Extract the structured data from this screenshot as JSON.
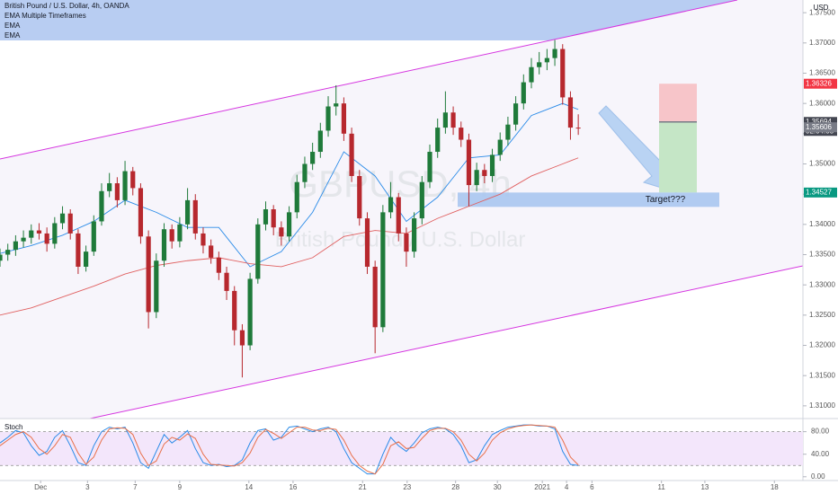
{
  "chart_data": {
    "type": "candlestick",
    "title": "British Pound / U.S. Dollar, 4h, OANDA",
    "indicators": [
      "EMA Multiple Timeframes"
    ],
    "watermark": [
      "GBPUSD, 4h",
      "British Pound / U.S. Dollar"
    ],
    "currency": "USD",
    "up_color": "#1f7a3a",
    "down_color": "#b7282e",
    "grid": false,
    "x": [
      0,
      2,
      4,
      6,
      8,
      10,
      12,
      14,
      16,
      18,
      20,
      22,
      24,
      26,
      28,
      30,
      32,
      34,
      36,
      38,
      40,
      42,
      44,
      46,
      48,
      50,
      52,
      54,
      56,
      58,
      60,
      62,
      64,
      66,
      68,
      70,
      72,
      74,
      76,
      78,
      80,
      82,
      84,
      86,
      88,
      90,
      92,
      94,
      96,
      98,
      100,
      102,
      104,
      106,
      108,
      110,
      112,
      114,
      116,
      118,
      120,
      122,
      124,
      126,
      128,
      130,
      132,
      134,
      136,
      138,
      140,
      142,
      144,
      146,
      148
    ],
    "open": [
      1.334,
      1.335,
      1.3358,
      1.3372,
      1.3378,
      1.339,
      1.3385,
      1.3368,
      1.3402,
      1.3418,
      1.3385,
      1.333,
      1.3355,
      1.3405,
      1.3455,
      1.3468,
      1.344,
      1.3488,
      1.346,
      1.338,
      1.3255,
      1.334,
      1.3392,
      1.3372,
      1.34,
      1.344,
      1.3385,
      1.3365,
      1.3345,
      1.332,
      1.329,
      1.3225,
      1.32,
      1.331,
      1.34,
      1.3425,
      1.3395,
      1.338,
      1.342,
      1.347,
      1.35,
      1.352,
      1.3555,
      1.3595,
      1.36,
      1.355,
      1.348,
      1.341,
      1.333,
      1.323,
      1.342,
      1.3445,
      1.3385,
      1.3355,
      1.341,
      1.347,
      1.352,
      1.356,
      1.3585,
      1.356,
      1.354,
      1.3465,
      1.349,
      1.348,
      1.3515,
      1.354,
      1.3565,
      1.36,
      1.3635,
      1.366,
      1.3668,
      1.3675,
      1.369,
      1.361,
      1.356
    ],
    "high": [
      1.336,
      1.3368,
      1.3382,
      1.339,
      1.34,
      1.3402,
      1.3395,
      1.3412,
      1.343,
      1.3425,
      1.3392,
      1.3365,
      1.3415,
      1.3468,
      1.3485,
      1.3478,
      1.3505,
      1.3495,
      1.3468,
      1.339,
      1.3352,
      1.3402,
      1.34,
      1.3412,
      1.346,
      1.345,
      1.3395,
      1.3375,
      1.3355,
      1.333,
      1.3298,
      1.3235,
      1.332,
      1.341,
      1.3438,
      1.3432,
      1.3405,
      1.343,
      1.3482,
      1.3512,
      1.3535,
      1.3568,
      1.3612,
      1.363,
      1.361,
      1.356,
      1.349,
      1.342,
      1.334,
      1.3432,
      1.347,
      1.3452,
      1.3395,
      1.342,
      1.348,
      1.3532,
      1.3575,
      1.362,
      1.3595,
      1.357,
      1.355,
      1.3502,
      1.35,
      1.3525,
      1.3552,
      1.3578,
      1.3612,
      1.3648,
      1.3675,
      1.3685,
      1.369,
      1.3705,
      1.3698,
      1.362,
      1.3582
    ],
    "low": [
      1.333,
      1.334,
      1.3348,
      1.3362,
      1.3368,
      1.3375,
      1.3355,
      1.336,
      1.3392,
      1.3375,
      1.3318,
      1.3322,
      1.3348,
      1.3398,
      1.3445,
      1.3428,
      1.3432,
      1.3448,
      1.3368,
      1.3228,
      1.3245,
      1.333,
      1.336,
      1.3362,
      1.3392,
      1.3375,
      1.3352,
      1.3335,
      1.3308,
      1.3275,
      1.32,
      1.3147,
      1.3192,
      1.3302,
      1.339,
      1.3382,
      1.3365,
      1.3372,
      1.341,
      1.346,
      1.349,
      1.351,
      1.3545,
      1.358,
      1.3538,
      1.347,
      1.3398,
      1.3318,
      1.3187,
      1.3222,
      1.341,
      1.3372,
      1.333,
      1.3345,
      1.34,
      1.346,
      1.351,
      1.355,
      1.3548,
      1.3528,
      1.343,
      1.3455,
      1.3468,
      1.347,
      1.3505,
      1.353,
      1.3555,
      1.359,
      1.3625,
      1.3648,
      1.3655,
      1.3662,
      1.3598,
      1.354,
      1.3548
    ],
    "close": [
      1.335,
      1.3358,
      1.3372,
      1.3378,
      1.339,
      1.3385,
      1.3368,
      1.3402,
      1.3418,
      1.3385,
      1.333,
      1.3355,
      1.3405,
      1.3455,
      1.3468,
      1.344,
      1.3488,
      1.346,
      1.338,
      1.3255,
      1.334,
      1.3392,
      1.3372,
      1.34,
      1.344,
      1.3385,
      1.3365,
      1.3345,
      1.332,
      1.329,
      1.3225,
      1.32,
      1.331,
      1.34,
      1.3425,
      1.3395,
      1.338,
      1.342,
      1.347,
      1.35,
      1.352,
      1.3555,
      1.3595,
      1.36,
      1.355,
      1.348,
      1.341,
      1.333,
      1.323,
      1.342,
      1.3445,
      1.3385,
      1.3355,
      1.341,
      1.347,
      1.352,
      1.356,
      1.3585,
      1.356,
      1.354,
      1.3465,
      1.349,
      1.348,
      1.3515,
      1.354,
      1.3565,
      1.36,
      1.3635,
      1.366,
      1.3668,
      1.3675,
      1.369,
      1.361,
      1.356,
      1.3559
    ],
    "overlays": [
      {
        "name": "EMA",
        "color": "#2a8be8",
        "x": [
          0,
          8,
          16,
          24,
          32,
          40,
          48,
          56,
          64,
          72,
          80,
          88,
          96,
          104,
          112,
          120,
          128,
          136,
          144,
          148
        ],
        "values": [
          1.3352,
          1.3365,
          1.3382,
          1.3405,
          1.344,
          1.342,
          1.3395,
          1.3395,
          1.333,
          1.3355,
          1.342,
          1.352,
          1.348,
          1.3405,
          1.3445,
          1.351,
          1.3515,
          1.358,
          1.36,
          1.359
        ]
      },
      {
        "name": "EMA",
        "color": "#e06060",
        "x": [
          0,
          8,
          16,
          24,
          32,
          40,
          48,
          56,
          64,
          72,
          80,
          88,
          96,
          104,
          112,
          120,
          128,
          136,
          144,
          148
        ],
        "values": [
          1.325,
          1.3262,
          1.328,
          1.3298,
          1.3318,
          1.3332,
          1.334,
          1.3345,
          1.3335,
          1.333,
          1.3345,
          1.338,
          1.339,
          1.3385,
          1.341,
          1.343,
          1.345,
          1.348,
          1.35,
          1.351
        ]
      }
    ],
    "xlim": [
      0,
      205.5
    ],
    "ylim": [
      1.3079,
      1.3771
    ],
    "yticks": [
      {
        "value": 1.31,
        "label": "1.31000"
      },
      {
        "value": 1.315,
        "label": "1.31500"
      },
      {
        "value": 1.32,
        "label": "1.32000"
      },
      {
        "value": 1.325,
        "label": "1.32500"
      },
      {
        "value": 1.33,
        "label": "1.33000"
      },
      {
        "value": 1.335,
        "label": "1.33500"
      },
      {
        "value": 1.34,
        "label": "1.34000"
      },
      {
        "value": 1.345,
        "label": "1.34500"
      },
      {
        "value": 1.35,
        "label": "1.35000"
      },
      {
        "value": 1.355,
        "label": "1.35500"
      },
      {
        "value": 1.36,
        "label": "1.36000"
      },
      {
        "value": 1.365,
        "label": "1.36500"
      },
      {
        "value": 1.37,
        "label": "1.37000"
      },
      {
        "value": 1.375,
        "label": "1.37500"
      }
    ],
    "xticks": [
      {
        "value": 10.4,
        "label": "Dec"
      },
      {
        "value": 22.4,
        "label": "3"
      },
      {
        "value": 34.6,
        "label": "7"
      },
      {
        "value": 46,
        "label": "9"
      },
      {
        "value": 63.7,
        "label": "14"
      },
      {
        "value": 75,
        "label": "16"
      },
      {
        "value": 92.8,
        "label": "21"
      },
      {
        "value": 104.2,
        "label": "23"
      },
      {
        "value": 116.6,
        "label": "28"
      },
      {
        "value": 127.3,
        "label": "30"
      },
      {
        "value": 138.8,
        "label": "2021"
      },
      {
        "value": 145,
        "label": "4"
      },
      {
        "value": 151.5,
        "label": "6"
      },
      {
        "value": 169.3,
        "label": "11"
      },
      {
        "value": 180.4,
        "label": "13"
      },
      {
        "value": 198.2,
        "label": "18"
      }
    ],
    "price_labels": [
      {
        "value": 1.36326,
        "color": "#f23645"
      },
      {
        "value": 1.35694,
        "color": "#434651"
      },
      {
        "value": 1.35606,
        "color": "#787b86"
      },
      {
        "value": 1.34527,
        "color": "#089981"
      }
    ],
    "countdown": "02:04:05",
    "annotation": "Target???",
    "stoch": {
      "title": "Stoch",
      "ylim": [
        -6.7,
        101.7
      ],
      "yticks": [
        {
          "value": 0,
          "label": "0.00"
        },
        {
          "value": 40,
          "label": "40.00"
        },
        {
          "value": 80,
          "label": "80.00"
        }
      ],
      "band": [
        20,
        80
      ],
      "series": [
        {
          "color": "#2a8be8",
          "values": [
            60,
            70,
            82,
            78,
            55,
            38,
            45,
            70,
            82,
            55,
            25,
            20,
            55,
            80,
            88,
            85,
            88,
            60,
            25,
            15,
            45,
            75,
            60,
            70,
            82,
            50,
            25,
            20,
            22,
            18,
            20,
            30,
            60,
            82,
            85,
            65,
            70,
            88,
            90,
            85,
            80,
            85,
            88,
            80,
            50,
            25,
            15,
            5,
            5,
            40,
            70,
            55,
            45,
            60,
            78,
            85,
            88,
            85,
            75,
            55,
            25,
            30,
            55,
            75,
            82,
            88,
            90,
            92,
            92,
            90,
            90,
            85,
            45,
            22,
            20
          ]
        },
        {
          "color": "#e8704a",
          "values": [
            55,
            65,
            75,
            80,
            70,
            50,
            40,
            55,
            75,
            70,
            42,
            22,
            35,
            65,
            85,
            87,
            86,
            75,
            42,
            20,
            28,
            58,
            70,
            65,
            76,
            68,
            40,
            22,
            21,
            20,
            19,
            25,
            42,
            70,
            84,
            77,
            68,
            78,
            88,
            88,
            83,
            82,
            86,
            84,
            65,
            38,
            20,
            10,
            5,
            22,
            55,
            62,
            50,
            52,
            68,
            82,
            86,
            86,
            80,
            65,
            40,
            28,
            42,
            65,
            78,
            85,
            89,
            91,
            92,
            91,
            90,
            88,
            65,
            35,
            21
          ]
        }
      ]
    }
  }
}
